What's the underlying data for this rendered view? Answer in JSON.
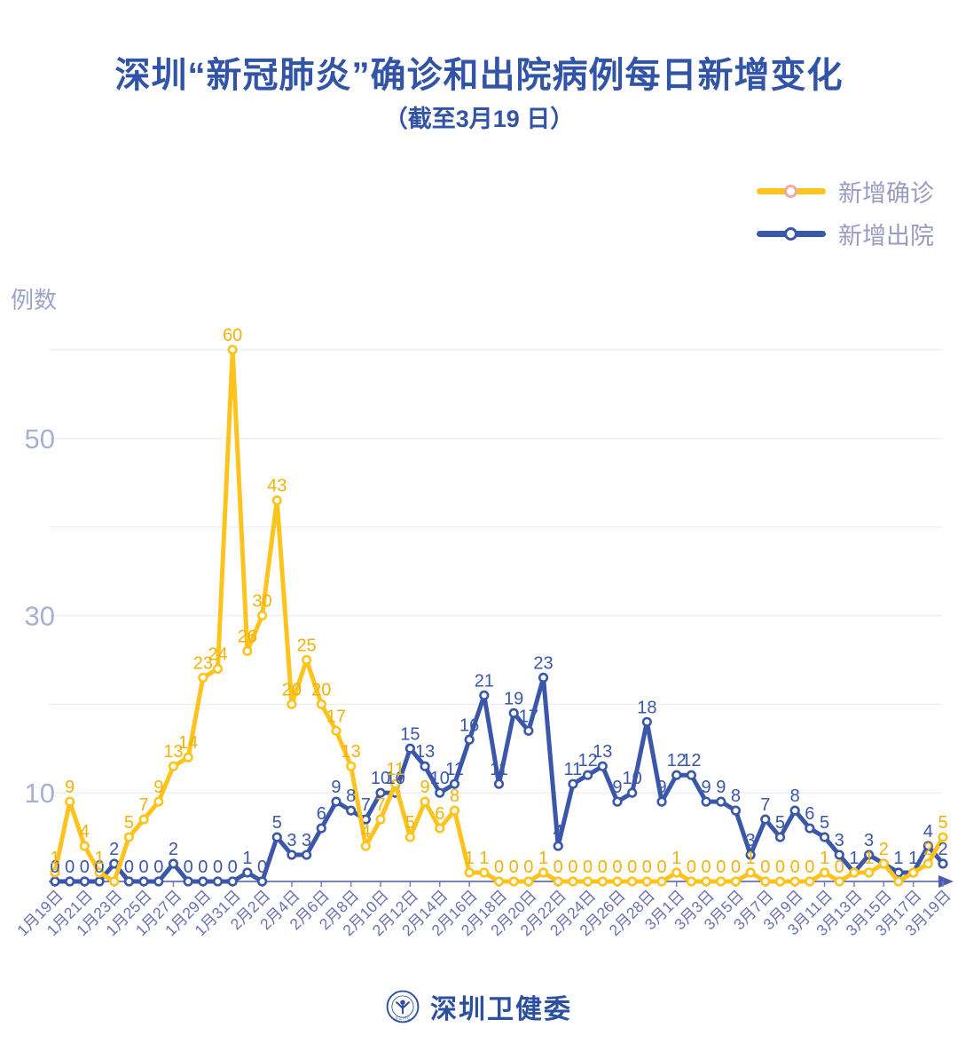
{
  "title": "深圳“新冠肺炎”确诊和出院病例每日新增变化",
  "subtitle": "（截至3月19 日）",
  "y_axis_title": "例数",
  "legend": [
    {
      "label": "新增确诊",
      "color": "#FFC31E",
      "marker_ring": "#F2A8A0"
    },
    {
      "label": "新增出院",
      "color": "#3A57A9",
      "marker_ring": "#3A57A9"
    }
  ],
  "footer": {
    "brand": "深圳卫健委",
    "logo": "szhc-emblem"
  },
  "colors": {
    "grid": "#ECECF3",
    "axis": "#7880BE",
    "arrow": "#4A5CAB",
    "y_tick": "#A8AFD3",
    "x_tick": "#6971B4"
  },
  "chart_data": {
    "type": "line",
    "title": "深圳“新冠肺炎”确诊和出院病例每日新增变化",
    "subtitle": "（截至3月19 日）",
    "ylabel": "例数",
    "ylim": [
      0,
      62
    ],
    "grid": true,
    "legend_position": "top-right",
    "y_gridlines": [
      10,
      20,
      30,
      40,
      50,
      60
    ],
    "y_ticks_labeled": [
      50,
      30,
      10
    ],
    "x_label_step": 2,
    "x": [
      "1月19日",
      "1月20日",
      "1月21日",
      "1月22日",
      "1月23日",
      "1月24日",
      "1月25日",
      "1月26日",
      "1月27日",
      "1月28日",
      "1月29日",
      "1月30日",
      "1月31日",
      "2月1日",
      "2月2日",
      "2月3日",
      "2月4日",
      "2月5日",
      "2月6日",
      "2月7日",
      "2月8日",
      "2月9日",
      "2月10日",
      "2月11日",
      "2月12日",
      "2月13日",
      "2月14日",
      "2月15日",
      "2月16日",
      "2月17日",
      "2月18日",
      "2月19日",
      "2月20日",
      "2月21日",
      "2月22日",
      "2月23日",
      "2月24日",
      "2月25日",
      "2月26日",
      "2月27日",
      "2月28日",
      "2月29日",
      "3月1日",
      "3月2日",
      "3月3日",
      "3月4日",
      "3月5日",
      "3月6日",
      "3月7日",
      "3月8日",
      "3月9日",
      "3月10日",
      "3月11日",
      "3月12日",
      "3月13日",
      "3月14日",
      "3月15日",
      "3月16日",
      "3月17日",
      "3月18日",
      "3月19日"
    ],
    "series": [
      {
        "name": "新增确诊",
        "color": "#FFC31E",
        "label_color": "#F0B30B",
        "values": [
          1,
          9,
          4,
          1,
          0,
          5,
          7,
          9,
          13,
          14,
          23,
          24,
          60,
          26,
          30,
          43,
          20,
          25,
          20,
          17,
          13,
          4,
          7,
          11,
          5,
          9,
          6,
          8,
          1,
          1,
          0,
          0,
          0,
          1,
          0,
          0,
          0,
          0,
          0,
          0,
          0,
          0,
          1,
          0,
          0,
          0,
          0,
          1,
          0,
          0,
          0,
          0,
          1,
          0,
          1,
          1,
          2,
          0,
          1,
          2,
          5
        ],
        "hidden_value_labels": [
          4,
          54,
          57,
          58
        ]
      },
      {
        "name": "新增出院",
        "color": "#3A57A9",
        "label_color": "#3A57A9",
        "values": [
          0,
          0,
          0,
          0,
          2,
          0,
          0,
          0,
          2,
          0,
          0,
          0,
          0,
          1,
          0,
          5,
          3,
          3,
          6,
          9,
          8,
          7,
          10,
          10,
          15,
          13,
          10,
          11,
          16,
          21,
          11,
          19,
          17,
          23,
          4,
          11,
          12,
          13,
          9,
          10,
          18,
          9,
          12,
          12,
          9,
          9,
          8,
          3,
          7,
          5,
          8,
          6,
          5,
          3,
          1,
          3,
          2,
          1,
          1,
          4,
          2
        ],
        "hidden_value_labels": [
          56
        ]
      }
    ]
  }
}
